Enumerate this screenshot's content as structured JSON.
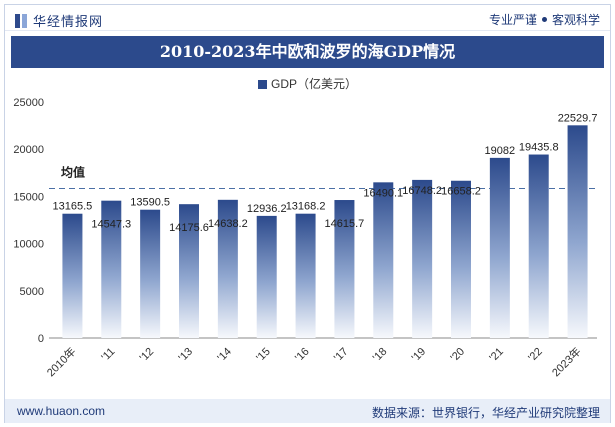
{
  "header": {
    "brand": "华经情报网",
    "slogan_left": "专业严谨",
    "slogan_right": "客观科学",
    "logo_icon": "huajing-logo-icon"
  },
  "title": "2010-2023年中欧和波罗的海GDP情况",
  "colors": {
    "bar_top": "#2c4a8c",
    "bar_bottom": "#ffffff",
    "average_line": "#4a6fa5",
    "title_bg": "#2c4a8c",
    "footer_bg": "#e8eef8"
  },
  "chart_data": {
    "type": "bar",
    "title": "2010-2023年中欧和波罗的海GDP情况",
    "legend": [
      "GDP（亿美元）"
    ],
    "legend_position": "top-center",
    "categories": [
      "2010年",
      "'11",
      "'12",
      "'13",
      "'14",
      "'15",
      "'16",
      "'17",
      "'18",
      "'19",
      "'20",
      "'21",
      "'22",
      "2023年"
    ],
    "series": [
      {
        "name": "GDP（亿美元）",
        "values": [
          13165.5,
          14547.3,
          13590.5,
          14175.6,
          14638.2,
          12936.2,
          13168.2,
          14615.7,
          16490.1,
          16748.2,
          16658.2,
          19082,
          19435.8,
          22529.7
        ],
        "labels": [
          "13165.5",
          "14547.3",
          "13590.5",
          "14175.6",
          "14638.2",
          "12936.2",
          "13168.2",
          "14615.7",
          "16490.1",
          "16748.2",
          "16658.2",
          "19082",
          "19435.8",
          "22529.7"
        ]
      }
    ],
    "average": {
      "label": "均值",
      "value": 15841
    },
    "yticks": [
      "0",
      "5000",
      "10000",
      "15000",
      "20000",
      "25000"
    ],
    "ylim": [
      0,
      25000
    ],
    "grid": false
  },
  "footer": {
    "url": "www.huaon.com",
    "source": "数据来源：世界银行，华经产业研究院整理"
  }
}
